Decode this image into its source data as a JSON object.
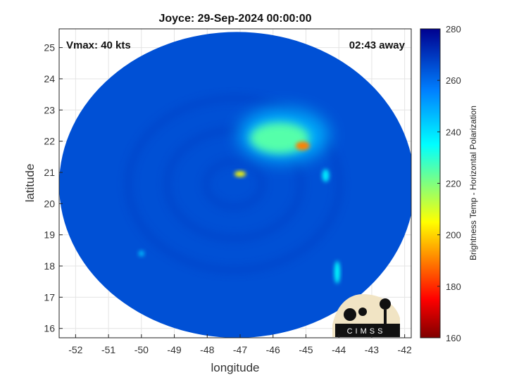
{
  "chart_data": {
    "type": "heatmap",
    "title": "Joyce: 29-Sep-2024 00:00:00",
    "xlabel": "longitude",
    "ylabel": "latitude",
    "xlim": [
      -52.5,
      -41.8
    ],
    "ylim": [
      15.7,
      25.6
    ],
    "xticks": [
      -52,
      -51,
      -50,
      -49,
      -48,
      -47,
      -46,
      -45,
      -44,
      -43,
      -42
    ],
    "yticks": [
      16,
      17,
      18,
      19,
      20,
      21,
      22,
      23,
      24,
      25
    ],
    "grid": true,
    "annotations": {
      "vmax": "Vmax: 40 kts",
      "time_offset": "02:43 away"
    },
    "storm_center": {
      "lon": -47.1,
      "lat": 20.8
    },
    "swath": {
      "center_lon": -47.1,
      "center_lat": 20.6,
      "radius_lon": 5.4,
      "radius_lat": 4.9
    },
    "background_value": 265,
    "features": [
      {
        "name": "northeast-convection",
        "lon": -45.8,
        "lat": 22.1,
        "value": 225
      },
      {
        "name": "warm-core-ring",
        "lon": -45.1,
        "lat": 21.85,
        "value": 190
      },
      {
        "name": "eyewall-arc",
        "lon": -47.0,
        "lat": 20.95,
        "value": 205
      },
      {
        "name": "southeast-rainband",
        "lon": -44.05,
        "lat": 17.8,
        "value": 235
      },
      {
        "name": "eastern-cell",
        "lon": -44.4,
        "lat": 20.9,
        "value": 238
      },
      {
        "name": "southwest-cell",
        "lon": -50.0,
        "lat": 18.4,
        "value": 245
      }
    ],
    "colorbar": {
      "label": "Brightness Temp - Horizontal Polarization",
      "min": 160,
      "max": 280,
      "ticks": [
        160,
        180,
        200,
        220,
        240,
        260,
        280
      ],
      "colormap": [
        "#7f0000",
        "#ff0000",
        "#ffff00",
        "#00ffff",
        "#0080ff",
        "#00008f"
      ]
    },
    "logo_text": "CIMSS"
  }
}
